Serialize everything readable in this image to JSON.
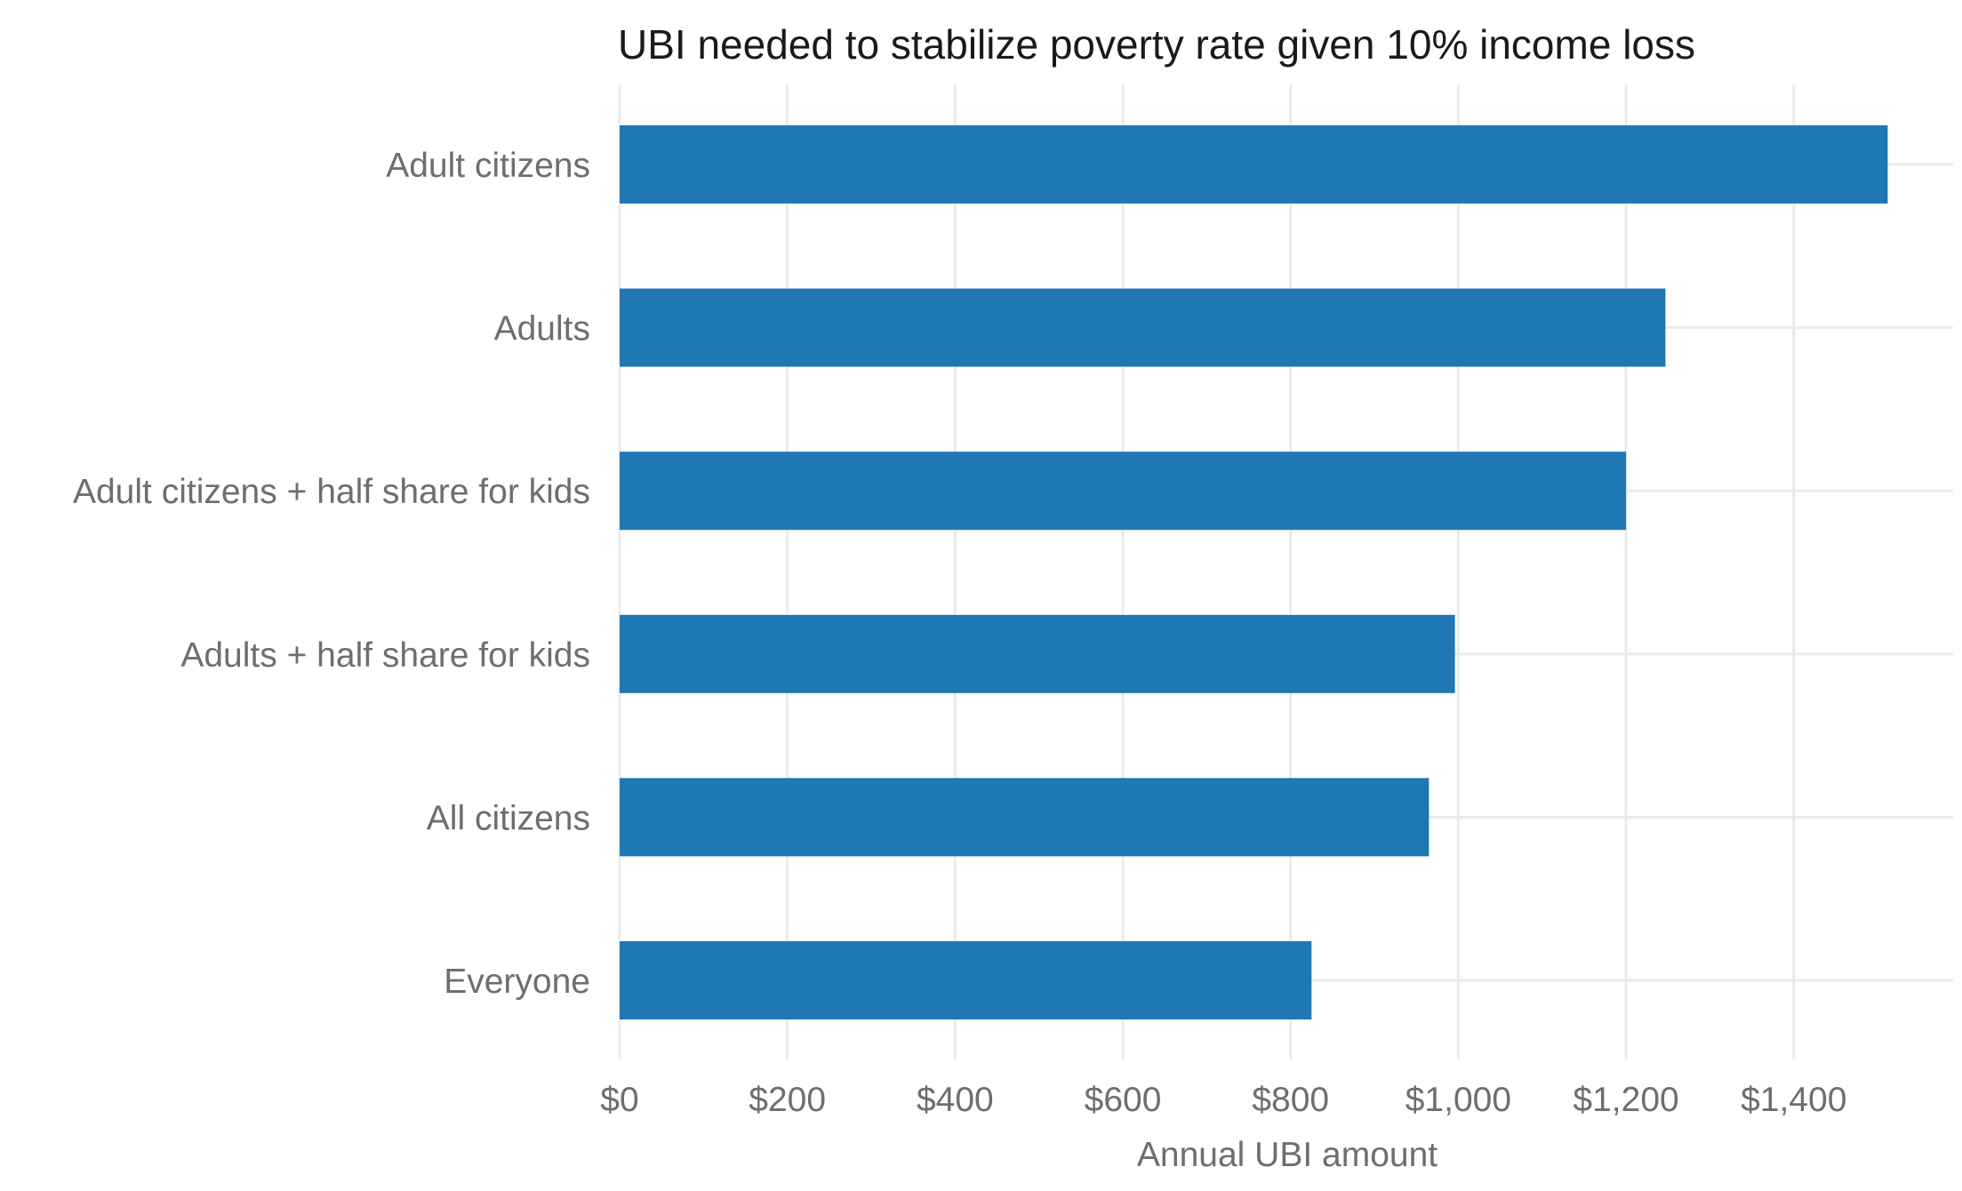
{
  "chart_data": {
    "type": "bar",
    "orientation": "horizontal",
    "title": "UBI needed to stabilize poverty rate given 10% income loss",
    "xlabel": "Annual UBI amount",
    "ylabel": "",
    "categories": [
      "Adult citizens",
      "Adults",
      "Adult citizens + half share for kids",
      "Adults + half share for kids",
      "All citizens",
      "Everyone"
    ],
    "values": [
      1512,
      1247,
      1200,
      996,
      965,
      825
    ],
    "xlim": [
      0,
      1590
    ],
    "x_ticks": [
      0,
      200,
      400,
      600,
      800,
      1000,
      1200,
      1400
    ],
    "x_tick_labels": [
      "$0",
      "$200",
      "$400",
      "$600",
      "$800",
      "$1,000",
      "$1,200",
      "$1,400"
    ],
    "bar_color": "#1f77b4",
    "grid": true,
    "legend": "none"
  }
}
